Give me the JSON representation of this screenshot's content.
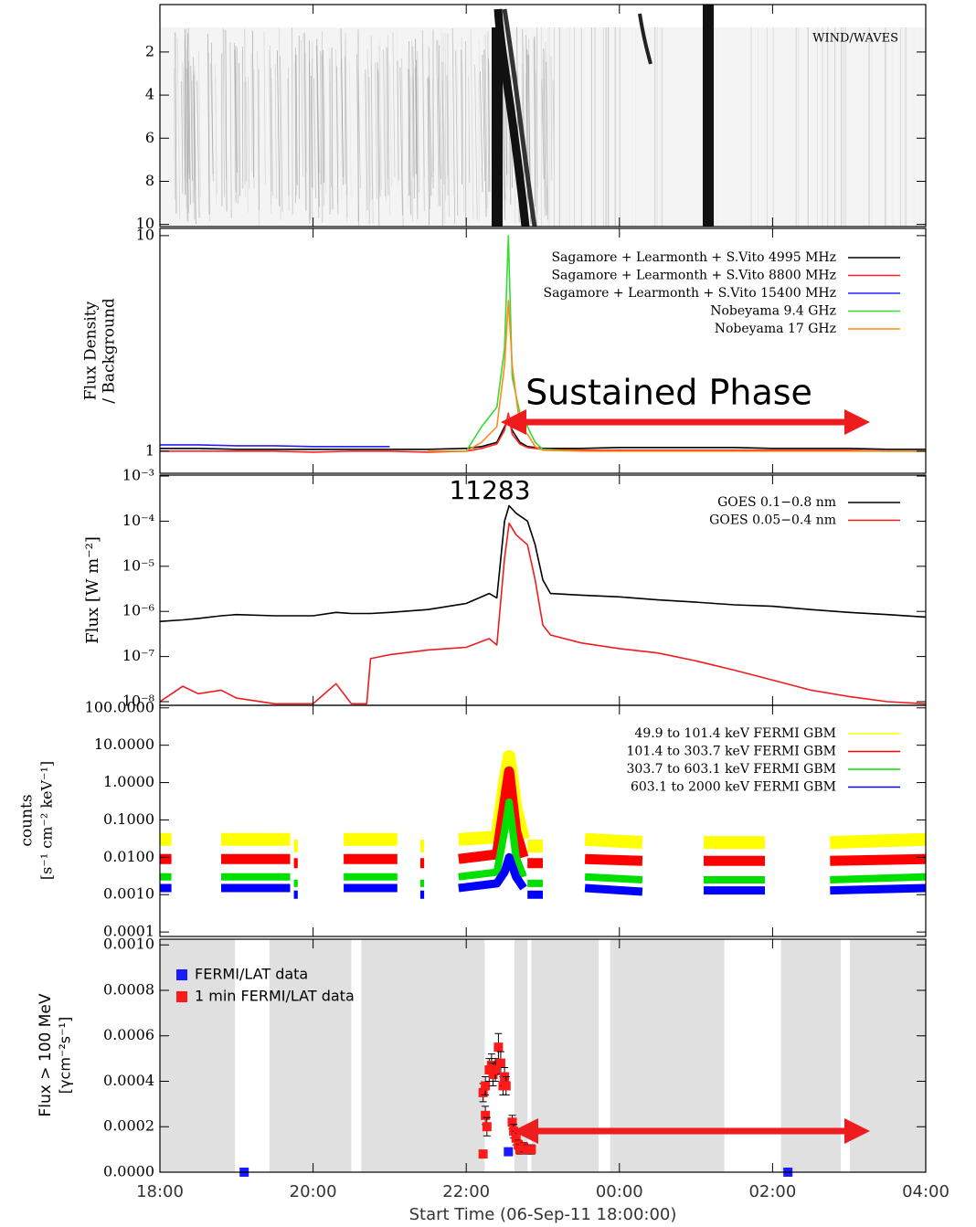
{
  "chart_data": [
    {
      "type": "spectrogram",
      "label": "WIND/WAVES",
      "ylim": [
        10.1,
        -0.2
      ],
      "yticks": [
        2,
        4,
        6,
        8,
        10
      ]
    },
    {
      "type": "line",
      "log_y": true,
      "ylabel": [
        "Flux Density",
        "/ Background"
      ],
      "annotation": "Sustained Phase",
      "legend": "upper right",
      "ylim": [
        0.79,
        10.8
      ],
      "yticks": [
        1,
        10
      ],
      "x": [
        0,
        0.5,
        1,
        1.5,
        2,
        2.5,
        3,
        3.5,
        4,
        4.2,
        4.4,
        4.5,
        4.55,
        4.6,
        4.7,
        4.8,
        4.9,
        5,
        5.5,
        6,
        6.5,
        7,
        7.5,
        8,
        8.5,
        9,
        9.5,
        10
      ],
      "series": [
        {
          "name": "Sagamore + Learmonth + S.Vito 4995 MHz",
          "color": "#000000",
          "values": [
            1.03,
            1.03,
            1.02,
            1.02,
            1.02,
            1.02,
            1.02,
            1.02,
            1.03,
            1.05,
            1.1,
            1.3,
            1.4,
            1.25,
            1.1,
            1.05,
            1.04,
            1.03,
            1.03,
            1.04,
            1.04,
            1.04,
            1.04,
            1.03,
            1.03,
            1.03,
            1.02,
            1.02
          ]
        },
        {
          "name": "Sagamore + Learmonth + S.Vito 8800 MHz",
          "color": "#ff2020",
          "values": [
            1.0,
            1.0,
            1.0,
            1.0,
            0.99,
            1.0,
            1.0,
            0.99,
            1.0,
            1.03,
            1.08,
            1.25,
            1.5,
            1.2,
            1.08,
            1.04,
            1.03,
            1.02,
            1.01,
            1.01,
            1.01,
            1.01,
            1.01,
            1.01,
            1.01,
            1.01,
            1.0,
            1.0
          ]
        },
        {
          "name": "Sagamore + Learmonth + S.Vito 15400 MHz",
          "color": "#2020ff",
          "values": [
            1.07,
            1.07,
            1.06,
            1.06,
            1.05,
            1.05,
            1.05,
            null,
            null,
            null,
            null,
            null,
            null,
            null,
            null,
            null,
            null,
            null,
            null,
            null,
            null,
            null,
            null,
            null,
            null,
            null,
            null,
            null
          ]
        },
        {
          "name": "Nobeyama 9.4 GHz",
          "color": "#33dd33",
          "values": [
            null,
            null,
            null,
            null,
            null,
            null,
            null,
            1.0,
            1.0,
            1.3,
            1.6,
            3,
            10,
            2.2,
            1.5,
            1.3,
            1.1,
            1.02,
            1.0,
            1.0,
            1.0,
            1.0,
            1.0,
            1.0,
            1.0,
            1.0,
            1.0,
            1.0
          ]
        },
        {
          "name": "Nobeyama 17 GHz",
          "color": "#ff8c1a",
          "values": [
            null,
            null,
            null,
            null,
            null,
            null,
            null,
            1.0,
            1.0,
            1.1,
            1.3,
            2.5,
            5,
            2.5,
            1.3,
            1.2,
            1.05,
            1.01,
            1.0,
            1.0,
            1.0,
            1.0,
            1.0,
            1.0,
            1.0,
            1.0,
            1.0,
            1.0
          ]
        }
      ]
    },
    {
      "type": "line",
      "log_y": true,
      "ylabel": "Flux [W m⁻²]",
      "annotation": "11283",
      "legend": "upper right",
      "ylim": [
        8.3e-09,
        0.00105
      ],
      "yticks": [
        {
          "value": 0.001,
          "label": "10⁻³"
        },
        {
          "value": 0.0001,
          "label": "10⁻⁴"
        },
        {
          "value": 1e-05,
          "label": "10⁻⁵"
        },
        {
          "value": 1e-06,
          "label": "10⁻⁶"
        },
        {
          "value": 1e-07,
          "label": "10⁻⁷"
        },
        {
          "value": 1e-08,
          "label": "10⁻⁸"
        }
      ],
      "x": [
        0,
        0.3,
        0.5,
        0.8,
        1,
        1.5,
        2,
        2.3,
        2.5,
        2.7,
        2.75,
        3,
        3.5,
        4,
        4.3,
        4.4,
        4.5,
        4.56,
        4.65,
        4.8,
        4.9,
        5,
        5.1,
        5.5,
        6,
        6.5,
        7,
        7.5,
        8,
        8.5,
        9,
        9.5,
        10
      ],
      "series": [
        {
          "name": "GOES 0.1−0.8 nm",
          "color": "#000000",
          "values": [
            6e-07,
            6.5e-07,
            7e-07,
            8e-07,
            8.5e-07,
            8e-07,
            8e-07,
            9.5e-07,
            9e-07,
            9e-07,
            9e-07,
            9.5e-07,
            1.1e-06,
            1.5e-06,
            2.5e-06,
            2e-06,
            0.0001,
            0.00022,
            0.00015,
            0.0001,
            3e-05,
            5e-06,
            2.5e-06,
            2.3e-06,
            2.1e-06,
            1.8e-06,
            1.6e-06,
            1.4e-06,
            1.3e-06,
            1.1e-06,
            9.5e-07,
            8.5e-07,
            7.5e-07
          ]
        },
        {
          "name": "GOES 0.05−0.4 nm",
          "color": "#ee1c1c",
          "values": [
            1e-08,
            2.2e-08,
            1.5e-08,
            1.8e-08,
            1.2e-08,
            9e-09,
            9e-09,
            2.5e-08,
            9e-09,
            9e-09,
            9e-08,
            1.1e-07,
            1.4e-07,
            1.6e-07,
            2.5e-07,
            1.8e-07,
            1.5e-05,
            9e-05,
            5e-05,
            3e-05,
            5e-06,
            5e-07,
            3e-07,
            2e-07,
            1.5e-07,
            1.2e-07,
            8e-08,
            5e-08,
            3e-08,
            1.8e-08,
            1.3e-08,
            1e-08,
            9e-09
          ]
        }
      ]
    },
    {
      "type": "line",
      "log_y": true,
      "ylabel": [
        "counts",
        "[s⁻¹ cm⁻² keV⁻¹]"
      ],
      "legend": "upper right",
      "ylim": [
        7.6e-05,
        117
      ],
      "yticks": [
        {
          "value": 100,
          "label": "100.0000"
        },
        {
          "value": 10,
          "label": "10.0000"
        },
        {
          "value": 1,
          "label": "1.0000"
        },
        {
          "value": 0.1,
          "label": "0.1000"
        },
        {
          "value": 0.01,
          "label": "0.0100"
        },
        {
          "value": 0.001,
          "label": "0.0010"
        },
        {
          "value": 0.0001,
          "label": "0.0001"
        }
      ],
      "x": [
        0,
        0.15,
        0.16,
        0.8,
        1.7,
        1.71,
        1.75,
        1.8,
        1.81,
        2.4,
        3.1,
        3.11,
        3.4,
        3.45,
        3.46,
        3.9,
        4.4,
        4.5,
        4.56,
        4.65,
        4.75,
        4.76,
        4.8,
        5,
        5.01,
        5.55,
        6.3,
        6.31,
        7.1,
        7.9,
        7.91,
        8.75,
        10
      ],
      "series": [
        {
          "name": "49.9 to 101.4 keV FERMI GBM",
          "color": "#ffff00",
          "values": [
            0.03,
            0.03,
            null,
            0.03,
            0.03,
            null,
            0.02,
            0.02,
            null,
            0.03,
            0.03,
            null,
            0.02,
            0.02,
            null,
            0.03,
            0.035,
            1,
            5,
            0.2,
            0.03,
            null,
            0.02,
            0.02,
            null,
            0.03,
            0.025,
            null,
            0.025,
            0.025,
            null,
            0.025,
            0.03
          ]
        },
        {
          "name": "101.4 to 303.7 keV FERMI GBM",
          "color": "#ff0000",
          "values": [
            0.009,
            0.009,
            null,
            0.009,
            0.009,
            null,
            0.007,
            0.007,
            null,
            0.009,
            0.009,
            null,
            0.007,
            0.007,
            null,
            0.009,
            0.012,
            0.3,
            2,
            0.05,
            0.01,
            null,
            0.007,
            0.007,
            null,
            0.009,
            0.008,
            null,
            0.008,
            0.008,
            null,
            0.008,
            0.009
          ]
        },
        {
          "name": "303.7 to 603.1 keV FERMI GBM",
          "color": "#00e000",
          "values": [
            0.003,
            0.003,
            null,
            0.003,
            0.003,
            null,
            0.002,
            0.002,
            null,
            0.003,
            0.003,
            null,
            0.002,
            0.002,
            null,
            0.003,
            0.004,
            0.05,
            0.3,
            0.01,
            0.003,
            null,
            0.002,
            0.002,
            null,
            0.003,
            0.0025,
            null,
            0.0025,
            0.0025,
            null,
            0.0025,
            0.003
          ]
        },
        {
          "name": "603.1 to 2000 keV FERMI GBM",
          "color": "#0000ff",
          "values": [
            0.0015,
            0.0015,
            null,
            0.0015,
            0.0015,
            null,
            0.001,
            0.001,
            null,
            0.0015,
            0.0015,
            null,
            0.001,
            0.001,
            null,
            0.0015,
            0.002,
            0.004,
            0.01,
            0.003,
            0.0015,
            null,
            0.001,
            0.001,
            null,
            0.0015,
            0.0012,
            null,
            0.0013,
            0.0013,
            null,
            0.0013,
            0.0015
          ]
        }
      ]
    },
    {
      "type": "scatter",
      "ylabel": [
        "Flux > 100 MeV",
        "[γcm⁻²s⁻¹]"
      ],
      "xlabel": "Start Time (06-Sep-11 18:00:00)",
      "legend": "upper left",
      "xlim": [
        0,
        10
      ],
      "xticks": [
        {
          "value": 0,
          "label": "18:00"
        },
        {
          "value": 2,
          "label": "20:00"
        },
        {
          "value": 4,
          "label": "22:00"
        },
        {
          "value": 6,
          "label": "00:00"
        },
        {
          "value": 8,
          "label": "02:00"
        },
        {
          "value": 10,
          "label": "04:00"
        }
      ],
      "ylim": [
        0,
        0.001025
      ],
      "yticks": [
        {
          "value": 0.001,
          "label": "0.0010"
        },
        {
          "value": 0.0008,
          "label": "0.0008"
        },
        {
          "value": 0.0006,
          "label": "0.0006"
        },
        {
          "value": 0.0004,
          "label": "0.0004"
        },
        {
          "value": 0.0002,
          "label": "0.0002"
        },
        {
          "value": 0,
          "label": "0.0000"
        }
      ],
      "shade_color": "#e0e0e0",
      "shaded_intervals": [
        [
          0,
          0.98
        ],
        [
          1.43,
          2.5
        ],
        [
          2.63,
          4.24
        ],
        [
          4.63,
          4.8
        ],
        [
          4.85,
          5.73
        ],
        [
          5.88,
          7.37
        ],
        [
          8.11,
          8.89
        ],
        [
          9.01,
          10
        ]
      ],
      "series": [
        {
          "name": "FERMI/LAT data",
          "color": "#1a1aff",
          "x": [
            1.1,
            4.55,
            8.2
          ],
          "values": [
            0,
            9e-05,
            0
          ]
        },
        {
          "name": "1 min FERMI/LAT data",
          "color": "#ff1a1a",
          "x": [
            4.22,
            4.22,
            4.25,
            4.25,
            4.27,
            4.3,
            4.33,
            4.35,
            4.38,
            4.42,
            4.45,
            4.48,
            4.5,
            4.52,
            4.6,
            4.62,
            4.65,
            4.68,
            4.7,
            4.75,
            4.8,
            4.85
          ],
          "values": [
            8e-05,
            0.00035,
            0.00038,
            0.00025,
            0.0002,
            0.00045,
            0.00047,
            0.00043,
            0.00045,
            0.00055,
            0.00048,
            0.00038,
            0.00042,
            0.00038,
            0.00022,
            0.00018,
            0.00015,
            0.00012,
            0.0001,
            0.00011,
            0.0001,
            0.0001
          ],
          "errors": [
            1e-05,
            4e-05,
            4e-05,
            4e-05,
            4e-05,
            5e-05,
            5e-05,
            5e-05,
            5e-05,
            6e-05,
            5e-05,
            4e-05,
            4e-05,
            4e-05,
            3e-05,
            3e-05,
            3e-05,
            2e-05,
            2e-05,
            2e-05,
            2e-05,
            2e-05
          ]
        }
      ]
    }
  ]
}
